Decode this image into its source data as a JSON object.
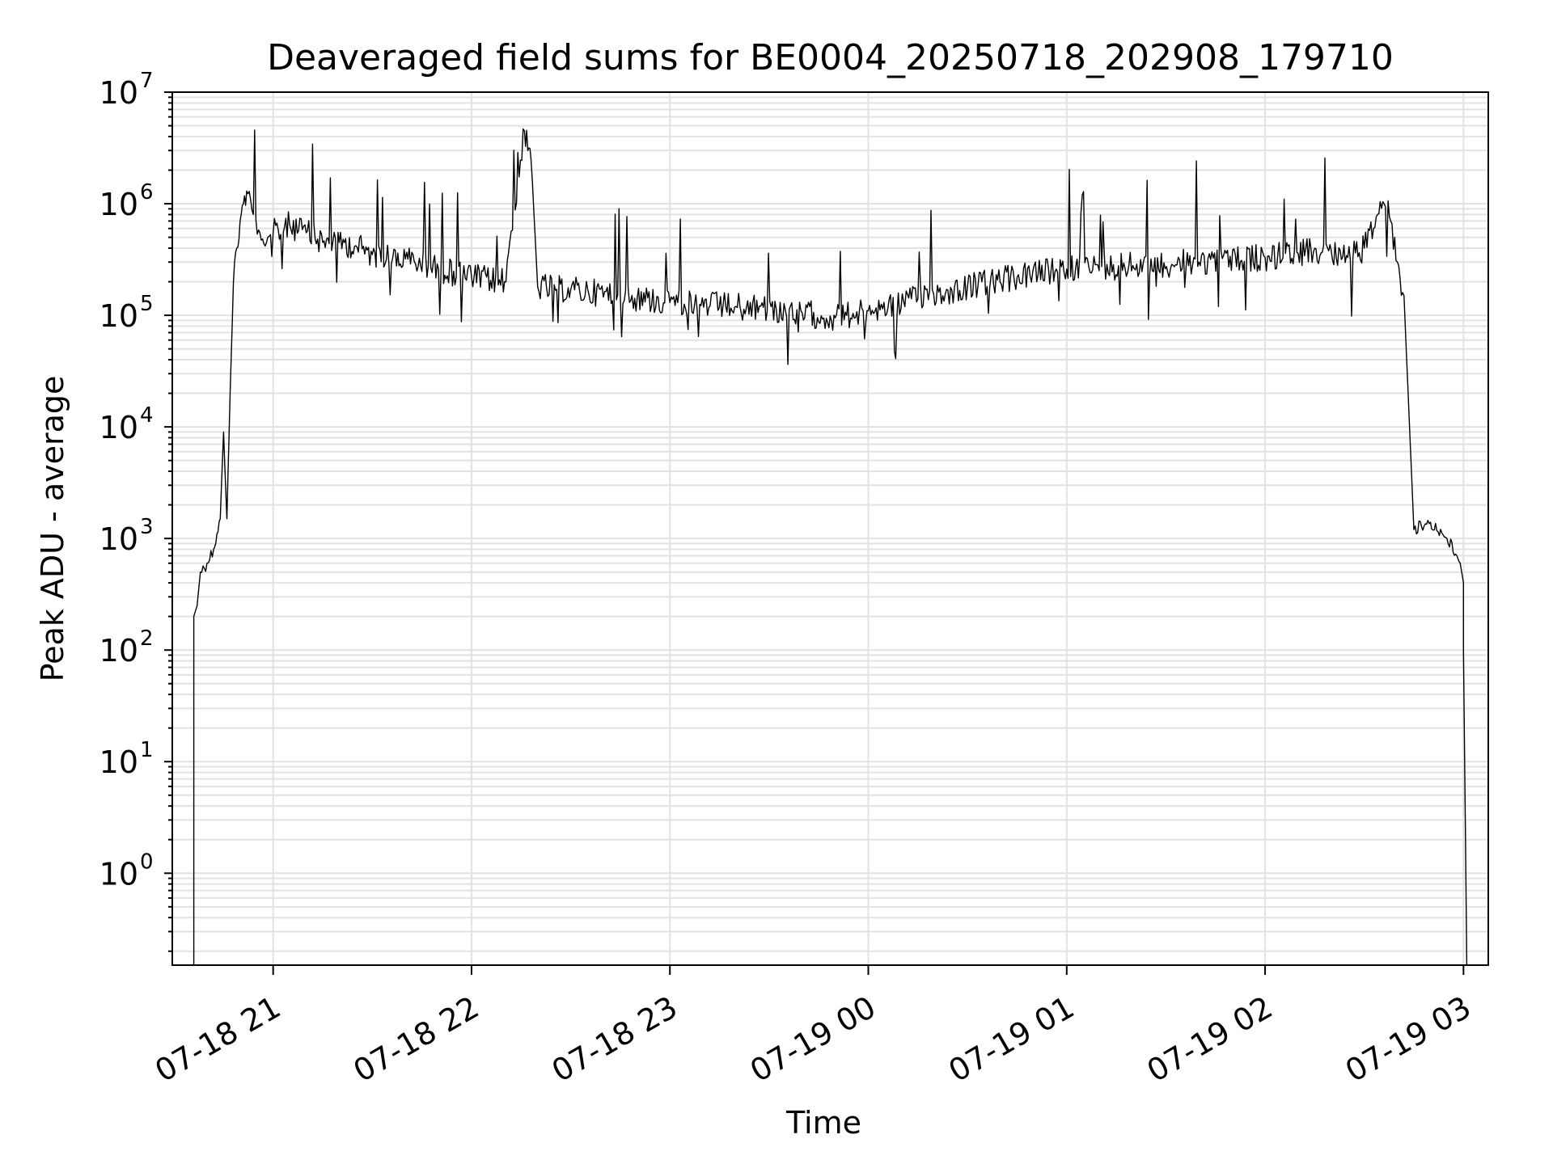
{
  "chart_data": {
    "type": "line",
    "title": "Deaveraged field sums for BE0004_20250718_202908_179710",
    "xlabel": "Time",
    "ylabel": "Peak ADU - average",
    "yscale": "log",
    "ylim": [
      0.15,
      10000000
    ],
    "xlim": [
      "2025-07-18 20:29:30",
      "2025-07-19 03:07:30"
    ],
    "grid": true,
    "legend": "none",
    "colors": {
      "line": "#000000",
      "grid": "#e2e2e2",
      "background": "#ffffff"
    },
    "x_ticks": [
      {
        "value": "2025-07-18 21:00",
        "label": "07-18 21"
      },
      {
        "value": "2025-07-18 22:00",
        "label": "07-18 22"
      },
      {
        "value": "2025-07-18 23:00",
        "label": "07-18 23"
      },
      {
        "value": "2025-07-19 00:00",
        "label": "07-19 00"
      },
      {
        "value": "2025-07-19 01:00",
        "label": "07-19 01"
      },
      {
        "value": "2025-07-19 02:00",
        "label": "07-19 02"
      },
      {
        "value": "2025-07-19 03:00",
        "label": "07-19 03"
      }
    ],
    "y_ticks": [
      {
        "value": 1,
        "base": "10",
        "exp": "0"
      },
      {
        "value": 10,
        "base": "10",
        "exp": "1"
      },
      {
        "value": 100,
        "base": "10",
        "exp": "2"
      },
      {
        "value": 1000,
        "base": "10",
        "exp": "3"
      },
      {
        "value": 10000,
        "base": "10",
        "exp": "4"
      },
      {
        "value": 100000,
        "base": "10",
        "exp": "5"
      },
      {
        "value": 1000000,
        "base": "10",
        "exp": "6"
      },
      {
        "value": 10000000,
        "base": "10",
        "exp": "7"
      }
    ],
    "series": [
      {
        "x": [
          "2025-07-18 20:36",
          "2025-07-18 20:36",
          "2025-07-18 20:37",
          "2025-07-18 20:38",
          "2025-07-18 20:40",
          "2025-07-18 20:42",
          "2025-07-18 20:43",
          "2025-07-18 20:44",
          "2025-07-18 20:45",
          "2025-07-18 20:46",
          "2025-07-18 20:47",
          "2025-07-18 20:48",
          "2025-07-18 20:49",
          "2025-07-18 20:50",
          "2025-07-18 20:51",
          "2025-07-18 20:52",
          "2025-07-18 20:54",
          "2025-07-18 20:56",
          "2025-07-18 20:58",
          "2025-07-18 21:00",
          "2025-07-18 21:05",
          "2025-07-18 21:10",
          "2025-07-18 21:15",
          "2025-07-18 21:20",
          "2025-07-18 21:25",
          "2025-07-18 21:30",
          "2025-07-18 21:40",
          "2025-07-18 21:50",
          "2025-07-18 22:00",
          "2025-07-18 22:10",
          "2025-07-18 22:16",
          "2025-07-18 22:17",
          "2025-07-18 22:18",
          "2025-07-18 22:20",
          "2025-07-18 22:30",
          "2025-07-18 22:45",
          "2025-07-18 23:00",
          "2025-07-18 23:20",
          "2025-07-18 23:40",
          "2025-07-18 23:50",
          "2025-07-19 00:00",
          "2025-07-19 00:15",
          "2025-07-19 00:30",
          "2025-07-19 00:45",
          "2025-07-19 01:00",
          "2025-07-19 01:20",
          "2025-07-19 01:40",
          "2025-07-19 02:00",
          "2025-07-19 02:10",
          "2025-07-19 02:20",
          "2025-07-19 02:25",
          "2025-07-19 02:30",
          "2025-07-19 02:34",
          "2025-07-19 02:36",
          "2025-07-19 02:38",
          "2025-07-19 02:40",
          "2025-07-19 02:42",
          "2025-07-19 02:45",
          "2025-07-19 02:50",
          "2025-07-19 02:55",
          "2025-07-19 02:58",
          "2025-07-19 02:59",
          "2025-07-19 03:00",
          "2025-07-19 03:00",
          "2025-07-19 03:01"
        ],
        "y": [
          0.15,
          200,
          250,
          500,
          600,
          800,
          1100,
          1500,
          9000,
          1500,
          20000,
          200000,
          400000,
          700000,
          1000000,
          1300000,
          800000,
          550000,
          450000,
          550000,
          650000,
          550000,
          450000,
          450000,
          420000,
          350000,
          320000,
          260000,
          220000,
          200000,
          4500000,
          3000000,
          2500000,
          180000,
          170000,
          150000,
          130000,
          120000,
          105000,
          95000,
          110000,
          140000,
          180000,
          220000,
          260000,
          280000,
          300000,
          330000,
          360000,
          380000,
          330000,
          400000,
          800000,
          1000000,
          700000,
          300000,
          150000,
          1200,
          1400,
          1000,
          700,
          600,
          400,
          100,
          0.15
        ]
      }
    ]
  }
}
